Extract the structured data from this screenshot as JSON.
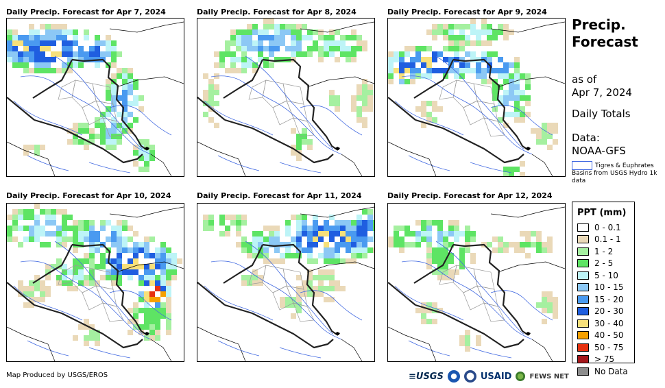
{
  "panels": [
    {
      "title": "Daily Precip. Forecast for Apr 7, 2024"
    },
    {
      "title": "Daily Precip. Forecast for Apr 8, 2024"
    },
    {
      "title": "Daily Precip. Forecast for Apr 9, 2024"
    },
    {
      "title": "Daily Precip. Forecast for Apr 10, 2024"
    },
    {
      "title": "Daily Precip. Forecast for Apr 11, 2024"
    },
    {
      "title": "Daily Precip. Forecast for Apr 12, 2024"
    }
  ],
  "side": {
    "title_line1": "Precip.",
    "title_line2": "Forecast",
    "as_of_label": "as of",
    "as_of_date": "Apr 7, 2024",
    "totals": "Daily Totals",
    "data_label": "Data:",
    "data_source": "NOAA-GFS",
    "basin_legend": "Tigres & Euphrates Basins from USGS Hydro 1k data"
  },
  "legend": {
    "title": "PPT (mm)",
    "items": [
      {
        "label": "0 - 0.1",
        "color": "#ffffff"
      },
      {
        "label": "0.1 - 1",
        "color": "#ead9b8"
      },
      {
        "label": "1 - 2",
        "color": "#a5f0a0"
      },
      {
        "label": "2 - 5",
        "color": "#5ee464"
      },
      {
        "label": "5 - 10",
        "color": "#bdf4f7"
      },
      {
        "label": "10 - 15",
        "color": "#8cc8f5"
      },
      {
        "label": "15 - 20",
        "color": "#4a9af0"
      },
      {
        "label": "20 - 30",
        "color": "#1f5ee0"
      },
      {
        "label": "30 - 40",
        "color": "#f7e07a"
      },
      {
        "label": "40 - 50",
        "color": "#f6a000"
      },
      {
        "label": "50 - 75",
        "color": "#e6300f"
      },
      {
        "label": "> 75",
        "color": "#a5161a"
      },
      {
        "label": "No Data",
        "color": "#8c8c8c"
      }
    ]
  },
  "footer": "Map Produced by USGS/EROS",
  "logos": {
    "usgs": "≡USGS",
    "usaid": "USAID",
    "fews": "FEWS NET"
  }
}
